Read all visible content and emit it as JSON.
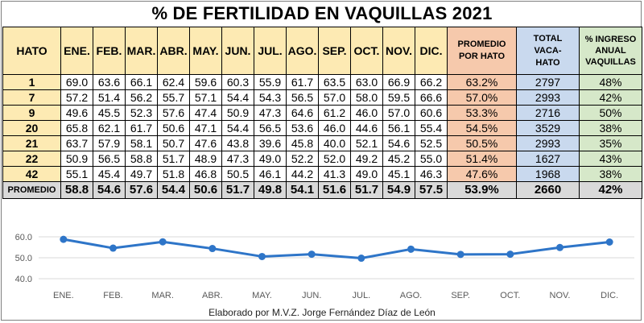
{
  "title": "% DE FERTILIDAD EN VAQUILLAS 2021",
  "table": {
    "headers": {
      "hato": "HATO",
      "months": [
        "ENE.",
        "FEB.",
        "MAR.",
        "ABR.",
        "MAY.",
        "JUN.",
        "JUL.",
        "AGO.",
        "SEP.",
        "OCT.",
        "NOV.",
        "DIC."
      ],
      "promedio_line1": "PROMEDIO",
      "promedio_line2": "POR HATO",
      "total_line1": "TOTAL",
      "total_line2": "VACA-",
      "total_line3": "HATO",
      "ingreso_line1": "% INGRESO",
      "ingreso_line2": "ANUAL",
      "ingreso_line3": "VAQUILLAS"
    },
    "rows": [
      {
        "hato": "1",
        "values": [
          "69.0",
          "63.6",
          "66.1",
          "62.4",
          "59.6",
          "60.3",
          "55.9",
          "61.7",
          "63.5",
          "63.0",
          "66.9",
          "66.2"
        ],
        "promedio": "63.2%",
        "total": "2797",
        "ingreso": "48%"
      },
      {
        "hato": "7",
        "values": [
          "57.2",
          "51.4",
          "56.2",
          "55.7",
          "57.1",
          "54.4",
          "54.3",
          "56.5",
          "57.0",
          "58.0",
          "59.5",
          "66.6"
        ],
        "promedio": "57.0%",
        "total": "2993",
        "ingreso": "42%"
      },
      {
        "hato": "9",
        "values": [
          "49.6",
          "45.5",
          "52.3",
          "57.6",
          "47.4",
          "50.9",
          "47.3",
          "64.6",
          "61.2",
          "46.0",
          "57.0",
          "60.6"
        ],
        "promedio": "53.3%",
        "total": "2716",
        "ingreso": "50%"
      },
      {
        "hato": "20",
        "values": [
          "65.8",
          "62.1",
          "61.7",
          "50.6",
          "47.1",
          "54.4",
          "56.5",
          "53.6",
          "46.0",
          "44.6",
          "56.1",
          "55.4"
        ],
        "promedio": "54.5%",
        "total": "3529",
        "ingreso": "38%"
      },
      {
        "hato": "21",
        "values": [
          "63.7",
          "57.9",
          "58.1",
          "50.7",
          "47.6",
          "43.8",
          "39.6",
          "45.8",
          "40.0",
          "52.1",
          "54.6",
          "52.5"
        ],
        "promedio": "50.5%",
        "total": "2993",
        "ingreso": "35%"
      },
      {
        "hato": "22",
        "values": [
          "50.9",
          "56.5",
          "58.8",
          "51.7",
          "48.9",
          "47.3",
          "49.0",
          "52.2",
          "52.0",
          "49.2",
          "45.2",
          "55.0"
        ],
        "promedio": "51.4%",
        "total": "1627",
        "ingreso": "43%"
      },
      {
        "hato": "42",
        "values": [
          "55.1",
          "45.4",
          "49.7",
          "51.8",
          "46.8",
          "50.5",
          "46.1",
          "44.2",
          "41.3",
          "49.0",
          "45.1",
          "46.3"
        ],
        "promedio": "47.6%",
        "total": "1968",
        "ingreso": "38%"
      }
    ],
    "average_row": {
      "label": "PROMEDIO",
      "values": [
        "58.8",
        "54.6",
        "57.6",
        "54.4",
        "50.6",
        "51.7",
        "49.8",
        "54.1",
        "51.6",
        "51.7",
        "54.9",
        "57.5"
      ],
      "promedio": "53.9%",
      "total": "2660",
      "ingreso": "42%"
    }
  },
  "chart_data": {
    "type": "line",
    "categories": [
      "ENE.",
      "FEB.",
      "MAR.",
      "ABR.",
      "MAY.",
      "JUN.",
      "JUL.",
      "AGO.",
      "SEP.",
      "OCT.",
      "NOV.",
      "DIC."
    ],
    "series": [
      {
        "values": [
          58.8,
          54.6,
          57.6,
          54.4,
          50.6,
          51.7,
          49.8,
          54.1,
          51.6,
          51.7,
          54.9,
          57.5
        ]
      }
    ],
    "ylim": [
      40,
      60
    ],
    "yticks": [
      "40.0",
      "50.0",
      "60.0"
    ],
    "grid": true,
    "color": "#2e75c8"
  },
  "credit": "Elaborado por M.V.Z. Jorge Fernández Díaz de León"
}
